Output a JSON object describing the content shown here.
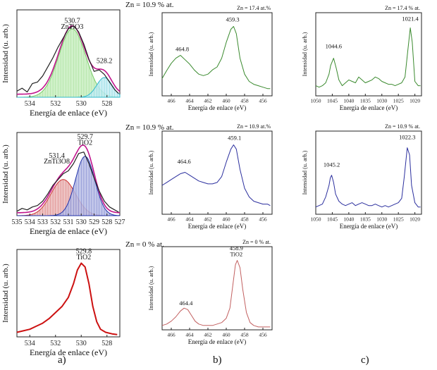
{
  "figure": {
    "col_labels": [
      "a)",
      "b)",
      "c)"
    ]
  },
  "chart_data": [
    {
      "id": "a1",
      "type": "line",
      "xlabel": "Energía de enlace (eV)",
      "ylabel": "Intensidad (u. arb.)",
      "zn_label": "Zn = 10.9 % at.",
      "xlim": [
        535,
        527
      ],
      "ticks": [
        534,
        532,
        530,
        528
      ],
      "annotations": [
        {
          "text": "530.7",
          "x": 530.7,
          "yv": 0.98
        },
        {
          "text": "ZnTiO3",
          "x": 530.7,
          "yv": 0.9,
          "sub": "3"
        },
        {
          "text": "528.2",
          "x": 528.2,
          "yv": 0.45
        }
      ],
      "ymax": 1.0,
      "series": [
        {
          "role": "data",
          "color": "#222222",
          "width": 1.2,
          "x": [
            535.0,
            534.6,
            534.2,
            533.8,
            533.4,
            533.0,
            532.6,
            532.2,
            531.8,
            531.4,
            531.0,
            530.6,
            530.2,
            529.8,
            529.4,
            529.0,
            528.6,
            528.2,
            527.8,
            527.4,
            527.1
          ],
          "y": [
            0.08,
            0.12,
            0.07,
            0.18,
            0.2,
            0.28,
            0.4,
            0.52,
            0.66,
            0.78,
            0.9,
            0.94,
            0.86,
            0.7,
            0.5,
            0.34,
            0.36,
            0.3,
            0.2,
            0.1,
            0.05
          ]
        },
        {
          "role": "fill",
          "color": "#77cc66",
          "fill": "#c8eec0",
          "center": 530.7,
          "sigma": 1.05,
          "amp": 0.9
        },
        {
          "role": "fill",
          "color": "#33bbcc",
          "fill": "#c4ecf2",
          "center": 528.2,
          "sigma": 0.6,
          "amp": 0.26
        },
        {
          "role": "envelope",
          "color": "#c0148c",
          "width": 1.6
        }
      ]
    },
    {
      "id": "a2",
      "type": "line",
      "xlabel": "Energía de enlace (eV)",
      "ylabel": "Intensidad (u. arb.)",
      "zn_label": "Zn = 10.9 % at.",
      "xlim": [
        535,
        527
      ],
      "ticks": [
        535,
        534,
        533,
        532,
        531,
        530,
        529,
        528,
        527
      ],
      "annotations": [
        {
          "text": "529.7",
          "x": 529.7,
          "yv": 1.06
        },
        {
          "text": "TiO2",
          "x": 529.7,
          "yv": 0.98,
          "sub": "2"
        },
        {
          "text": "531.4",
          "x": 531.9,
          "yv": 0.8
        },
        {
          "text": "ZnTi3O8",
          "x": 531.9,
          "yv": 0.72,
          "sub": "3 8"
        }
      ],
      "ymax": 1.0,
      "series": [
        {
          "role": "data",
          "color": "#222222",
          "width": 1.2,
          "x": [
            535.0,
            534.6,
            534.2,
            533.8,
            533.4,
            533.0,
            532.6,
            532.2,
            531.8,
            531.4,
            531.0,
            530.6,
            530.2,
            529.8,
            529.4,
            529.0,
            528.6,
            528.2,
            527.8,
            527.4,
            527.1
          ],
          "y": [
            0.06,
            0.1,
            0.08,
            0.12,
            0.14,
            0.2,
            0.3,
            0.42,
            0.5,
            0.58,
            0.62,
            0.72,
            0.86,
            0.88,
            0.72,
            0.52,
            0.34,
            0.2,
            0.12,
            0.08,
            0.05
          ]
        },
        {
          "role": "fill",
          "color": "#cc3333",
          "fill": "#eab7b7",
          "center": 531.4,
          "sigma": 0.95,
          "amp": 0.5
        },
        {
          "role": "fill",
          "color": "#2233aa",
          "fill": "#b8bde6",
          "center": 529.7,
          "sigma": 0.75,
          "amp": 0.82
        },
        {
          "role": "envelope",
          "color": "#c0148c",
          "width": 1.6
        }
      ]
    },
    {
      "id": "a3",
      "type": "line",
      "xlabel": "Energía de enlace (eV)",
      "ylabel": "Intensidad (u. arb.)",
      "zn_label": "Zn = 0 % at.",
      "xlim": [
        535,
        527
      ],
      "ticks": [
        534,
        532,
        530,
        528
      ],
      "annotations": [
        {
          "text": "529.8",
          "x": 529.8,
          "yv": 1.1
        },
        {
          "text": "TiO2",
          "x": 529.8,
          "yv": 1.02,
          "sub": "2"
        }
      ],
      "ymax": 1.0,
      "series": [
        {
          "role": "data",
          "color": "#cc1111",
          "width": 2,
          "x": [
            535.0,
            534.5,
            534.0,
            533.5,
            533.0,
            532.5,
            532.0,
            531.5,
            531.0,
            530.6,
            530.3,
            530.0,
            529.7,
            529.4,
            529.1,
            528.8,
            528.5,
            528.1,
            527.6,
            527.2
          ],
          "y": [
            0.06,
            0.08,
            0.1,
            0.14,
            0.18,
            0.24,
            0.32,
            0.4,
            0.52,
            0.7,
            0.88,
            0.97,
            0.92,
            0.7,
            0.4,
            0.2,
            0.1,
            0.06,
            0.04,
            0.03
          ]
        }
      ]
    },
    {
      "id": "b1",
      "type": "line",
      "xlabel": "Energía de enlace (eV)",
      "ylabel": "Intensidad (u. arb.)",
      "zn_label": "Zn = 17.4 at.%",
      "xlim": [
        467,
        455
      ],
      "ticks": [
        466,
        464,
        462,
        460,
        458,
        456
      ],
      "annotations": [
        {
          "text": "464.8",
          "x": 464.8,
          "yv": 0.62
        },
        {
          "text": "459.3",
          "x": 459.3,
          "yv": 1.03
        }
      ],
      "ymax": 1.0,
      "series": [
        {
          "role": "data",
          "color": "#3a8a2e",
          "width": 1,
          "x": [
            467.0,
            466.5,
            466.0,
            465.5,
            465.0,
            464.5,
            464.0,
            463.5,
            463.0,
            462.5,
            462.0,
            461.5,
            461.0,
            460.5,
            460.0,
            459.5,
            459.2,
            458.9,
            458.5,
            458.0,
            457.5,
            457.0,
            456.5,
            456.0,
            455.5,
            455.2
          ],
          "y": [
            0.24,
            0.35,
            0.45,
            0.52,
            0.56,
            0.5,
            0.44,
            0.36,
            0.3,
            0.28,
            0.3,
            0.36,
            0.4,
            0.52,
            0.74,
            0.92,
            0.96,
            0.86,
            0.52,
            0.3,
            0.2,
            0.16,
            0.14,
            0.12,
            0.1,
            0.1
          ]
        }
      ]
    },
    {
      "id": "b2",
      "type": "line",
      "xlabel": "Energía de enlace (eV)",
      "ylabel": "Intensidad (u. arb.)",
      "zn_label": "Zn = 10.9 at.%",
      "xlim": [
        467,
        455
      ],
      "ticks": [
        466,
        464,
        462,
        460,
        458,
        456
      ],
      "annotations": [
        {
          "text": "464.6",
          "x": 464.6,
          "yv": 0.7
        },
        {
          "text": "459.1",
          "x": 459.1,
          "yv": 1.03
        }
      ],
      "ymax": 1.0,
      "series": [
        {
          "role": "data",
          "color": "#2b2f9e",
          "width": 1,
          "x": [
            467.0,
            466.5,
            466.0,
            465.5,
            465.0,
            464.5,
            464.0,
            463.5,
            463.0,
            462.5,
            462.0,
            461.5,
            461.0,
            460.5,
            460.0,
            459.5,
            459.2,
            458.9,
            458.5,
            458.0,
            457.5,
            457.0,
            456.5,
            456.0,
            455.5,
            455.2
          ],
          "y": [
            0.4,
            0.44,
            0.48,
            0.52,
            0.56,
            0.58,
            0.54,
            0.5,
            0.46,
            0.44,
            0.42,
            0.42,
            0.44,
            0.52,
            0.72,
            0.9,
            0.96,
            0.9,
            0.62,
            0.36,
            0.24,
            0.18,
            0.16,
            0.14,
            0.14,
            0.12
          ]
        }
      ]
    },
    {
      "id": "b3",
      "type": "line",
      "xlabel": "Energía de enlace (eV)",
      "ylabel": "Intensidad (u. arb.)",
      "zn_label": "Zn = 0 % at.",
      "xlim": [
        467,
        455
      ],
      "ticks": [
        466,
        464,
        462,
        460,
        458,
        456
      ],
      "annotations": [
        {
          "text": "464.4",
          "x": 464.4,
          "yv": 0.34
        },
        {
          "text": "458.9",
          "x": 458.9,
          "yv": 1.1
        },
        {
          "text": "TiO2",
          "x": 458.9,
          "yv": 1.02,
          "sub": "2"
        }
      ],
      "ymax": 1.0,
      "series": [
        {
          "role": "data",
          "color": "#c26060",
          "width": 1,
          "x": [
            467.0,
            466.5,
            466.0,
            465.5,
            465.0,
            464.6,
            464.2,
            463.8,
            463.4,
            463.0,
            462.5,
            462.0,
            461.5,
            461.0,
            460.5,
            460.0,
            459.6,
            459.3,
            459.0,
            458.8,
            458.5,
            458.2,
            457.8,
            457.4,
            457.0,
            456.5,
            456.0,
            455.5,
            455.2
          ],
          "y": [
            0.06,
            0.08,
            0.12,
            0.18,
            0.26,
            0.3,
            0.28,
            0.2,
            0.12,
            0.08,
            0.06,
            0.06,
            0.06,
            0.08,
            0.1,
            0.16,
            0.3,
            0.6,
            0.9,
            0.96,
            0.86,
            0.56,
            0.24,
            0.1,
            0.06,
            0.04,
            0.04,
            0.04,
            0.04
          ]
        }
      ]
    },
    {
      "id": "c1",
      "type": "line",
      "xlabel": "Energía de enlace (eV)",
      "ylabel": "Intensidad (u. arb.)",
      "zn_label": "Zn = 17.4 % at.",
      "xlim": [
        1050,
        1018
      ],
      "ticks": [
        1050,
        1045,
        1040,
        1035,
        1030,
        1025,
        1020
      ],
      "annotations": [
        {
          "text": "1044.6",
          "x": 1044.6,
          "yv": 0.66
        },
        {
          "text": "1021.4",
          "x": 1021.4,
          "yv": 1.04
        }
      ],
      "ymax": 1.0,
      "series": [
        {
          "role": "data",
          "color": "#3a8a2e",
          "width": 1,
          "x": [
            1050,
            1049,
            1048,
            1047,
            1046,
            1045.5,
            1044.6,
            1043.8,
            1043,
            1042,
            1041,
            1040,
            1039,
            1038,
            1037,
            1036,
            1035,
            1034,
            1033,
            1032,
            1031,
            1030,
            1029,
            1028,
            1027,
            1026,
            1025,
            1024,
            1023,
            1022.2,
            1021.4,
            1020.8,
            1020,
            1019,
            1018.3
          ],
          "y": [
            0.14,
            0.12,
            0.14,
            0.18,
            0.3,
            0.42,
            0.52,
            0.38,
            0.22,
            0.14,
            0.18,
            0.22,
            0.2,
            0.18,
            0.26,
            0.22,
            0.18,
            0.2,
            0.22,
            0.26,
            0.24,
            0.2,
            0.18,
            0.16,
            0.16,
            0.14,
            0.16,
            0.18,
            0.26,
            0.6,
            0.94,
            0.74,
            0.2,
            0.14,
            0.14
          ]
        }
      ]
    },
    {
      "id": "c2",
      "type": "line",
      "xlabel": "Energía de enlace (eV)",
      "ylabel": "Intensidad (u. arb.)",
      "zn_label": "Zn = 10.9 % at.",
      "xlim": [
        1050,
        1018
      ],
      "ticks": [
        1050,
        1045,
        1040,
        1035,
        1030,
        1025,
        1020
      ],
      "annotations": [
        {
          "text": "1045.2",
          "x": 1045.2,
          "yv": 0.66
        },
        {
          "text": "1022.3",
          "x": 1022.3,
          "yv": 1.04
        }
      ],
      "ymax": 1.0,
      "series": [
        {
          "role": "data",
          "color": "#2b2f9e",
          "width": 1,
          "x": [
            1050,
            1049,
            1048,
            1047,
            1046,
            1045.6,
            1045.2,
            1044.6,
            1044,
            1043,
            1042,
            1041,
            1040,
            1039,
            1038,
            1037,
            1036,
            1035,
            1034,
            1033,
            1032,
            1031,
            1030,
            1029,
            1028,
            1027,
            1026,
            1025,
            1024,
            1023.2,
            1022.3,
            1021.6,
            1021,
            1020,
            1019,
            1018.3
          ],
          "y": [
            0.1,
            0.12,
            0.14,
            0.24,
            0.4,
            0.5,
            0.54,
            0.44,
            0.28,
            0.18,
            0.14,
            0.12,
            0.14,
            0.16,
            0.12,
            0.14,
            0.16,
            0.14,
            0.12,
            0.12,
            0.14,
            0.12,
            0.1,
            0.12,
            0.1,
            0.12,
            0.14,
            0.16,
            0.22,
            0.52,
            0.92,
            0.82,
            0.4,
            0.16,
            0.1,
            0.1
          ]
        }
      ]
    }
  ]
}
